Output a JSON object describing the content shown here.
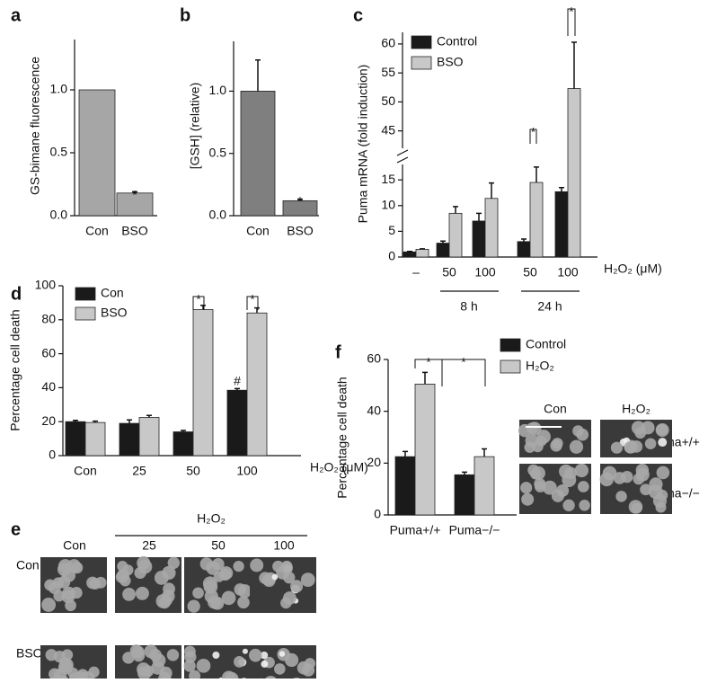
{
  "chart_data": [
    {
      "type": "bar",
      "label": "a",
      "ylabel": "GS-bimane fluorescence",
      "categories": [
        "Con",
        "BSO"
      ],
      "values": [
        1.0,
        0.18
      ],
      "errors": [
        0,
        0.01
      ],
      "color": "#a6a6a6",
      "ylim": [
        0,
        1.4
      ],
      "yticks": [
        {
          "value": 0,
          "label": "0.0"
        },
        {
          "value": 0.5,
          "label": "0.5"
        },
        {
          "value": 1,
          "label": "1.0"
        }
      ],
      "annotations": [
        "*"
      ]
    },
    {
      "type": "bar",
      "label": "b",
      "ylabel": "[GSH] (relative)",
      "categories": [
        "Con",
        "BSO"
      ],
      "values": [
        1.0,
        0.12
      ],
      "errors": [
        0.25,
        0.01
      ],
      "color": "#7f7f7f",
      "ylim": [
        0,
        1.4
      ],
      "yticks": [
        {
          "value": 0,
          "label": "0.0"
        },
        {
          "value": 0.5,
          "label": "0.5"
        },
        {
          "value": 1,
          "label": "1.0"
        }
      ],
      "annotations": [
        "*"
      ]
    },
    {
      "type": "grouped-bar",
      "label": "c",
      "ylabel": "Puma mRNA (fold induction)",
      "xlabel": "H₂O₂ (μM)",
      "categories": [
        "–",
        "50",
        "100",
        "50",
        "100"
      ],
      "groups": [
        "8 h",
        "24 h"
      ],
      "series": [
        {
          "name": "Control",
          "color": "#1a1a1a",
          "values": [
            1,
            2.7,
            7,
            3,
            12.7
          ],
          "errors": [
            0.1,
            0.4,
            1.5,
            0.5,
            0.8
          ]
        },
        {
          "name": "BSO",
          "color": "#c8c8c8",
          "values": [
            1.5,
            8.5,
            11.4,
            14.5,
            52.3
          ],
          "errors": [
            0.1,
            1.3,
            3,
            3,
            8
          ]
        }
      ],
      "ylim": [
        0,
        62
      ],
      "ybreak": [
        18,
        42
      ],
      "yticks": [
        0,
        5,
        10,
        15,
        45,
        50,
        55,
        60
      ],
      "annotations": [
        "*",
        "*"
      ]
    },
    {
      "type": "grouped-bar",
      "label": "d",
      "ylabel": "Percentage cell death",
      "xlabel": "H₂O₂ (μM)",
      "categories": [
        "Con",
        "25",
        "50",
        "100"
      ],
      "series": [
        {
          "name": "Con",
          "color": "#1a1a1a",
          "values": [
            20,
            19,
            14,
            38.5
          ],
          "errors": [
            0.8,
            2,
            0.8,
            1
          ]
        },
        {
          "name": "BSO",
          "color": "#c8c8c8",
          "values": [
            19.5,
            22.5,
            86,
            84
          ],
          "errors": [
            0.8,
            1.2,
            2.5,
            3
          ]
        }
      ],
      "ylim": [
        0,
        100
      ],
      "yticks": [
        0,
        20,
        40,
        60,
        80,
        100
      ],
      "annotations": [
        "*",
        "*",
        "#"
      ]
    },
    {
      "type": "grouped-bar",
      "label": "f",
      "ylabel": "Percentage cell death",
      "categories": [
        "Puma+/+",
        "Puma−/−"
      ],
      "series": [
        {
          "name": "Control",
          "color": "#1a1a1a",
          "values": [
            22.5,
            15.5
          ],
          "errors": [
            2,
            1
          ]
        },
        {
          "name": "H₂O₂",
          "color": "#c8c8c8",
          "values": [
            50.5,
            22.5
          ],
          "errors": [
            4.5,
            3
          ]
        }
      ],
      "ylim": [
        0,
        60
      ],
      "yticks": [
        0,
        20,
        40,
        60
      ],
      "annotations": [
        "*",
        "*"
      ]
    }
  ],
  "panel_e": {
    "label": "e",
    "treatment": "H₂O₂",
    "columns": [
      "Con",
      "25",
      "50",
      "100"
    ],
    "rows": [
      "Con",
      "BSO"
    ]
  },
  "panel_f_images": {
    "columns": [
      "Con",
      "H₂O₂"
    ],
    "rows": [
      "Puma+/+",
      "Puma−/−"
    ]
  }
}
